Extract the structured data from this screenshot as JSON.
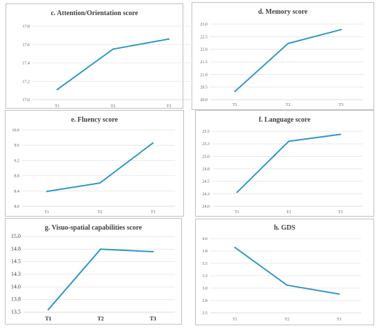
{
  "colors": {
    "line": "#2e95c8"
  },
  "chart_data": [
    {
      "type": "line",
      "title": "c. Attention/Orientation score",
      "categories": [
        "T1",
        "T2",
        "T3"
      ],
      "values": [
        17.11,
        17.55,
        17.66
      ],
      "ylim": [
        17.0,
        17.8
      ],
      "yticks": [
        "17.0",
        "17.2",
        "17.4",
        "17.6",
        "17.8"
      ],
      "grid": true
    },
    {
      "type": "line",
      "title": "d. Memory score",
      "categories": [
        "T1",
        "T2",
        "T3"
      ],
      "values": [
        20.33,
        22.23,
        22.78
      ],
      "ylim": [
        20.0,
        23.0
      ],
      "yticks": [
        "20.0",
        "20.5",
        "21.0",
        "21.5",
        "22.0",
        "22.5",
        "23.0"
      ],
      "grid": true
    },
    {
      "type": "line",
      "title": "e. Fluency score",
      "categories": [
        "T1",
        "T2",
        "T3"
      ],
      "values": [
        8.39,
        8.61,
        9.66
      ],
      "ylim": [
        8.0,
        10.0
      ],
      "yticks": [
        "8.0",
        "8.4",
        "8.8",
        "9.2",
        "9.6",
        "10.0"
      ],
      "grid": true
    },
    {
      "type": "line",
      "title": "f. Language score",
      "categories": [
        "T1",
        "T2",
        "T3"
      ],
      "values": [
        24.28,
        25.3,
        25.44
      ],
      "ylim": [
        24.0,
        25.5
      ],
      "yticks": [
        "24.0",
        "24.3",
        "24.5",
        "24.8",
        "25.0",
        "25.3",
        "25.5"
      ],
      "grid": true
    },
    {
      "type": "line",
      "title": "g. Visuo-spatial capabilities score",
      "categories": [
        "T1",
        "T2",
        "T3"
      ],
      "values": [
        13.55,
        14.75,
        14.7
      ],
      "ylim": [
        13.5,
        15.0
      ],
      "yticks": [
        "13.5",
        "13.8",
        "14.0",
        "14.3",
        "14.5",
        "14.8",
        "15.0"
      ],
      "grid": true
    },
    {
      "type": "line",
      "title": "h. GDS",
      "categories": [
        "T1",
        "T2",
        "T3"
      ],
      "values": [
        3.82,
        3.06,
        2.88
      ],
      "ylim": [
        2.5,
        4.0
      ],
      "yticks": [
        "2.5",
        "2.8",
        "3.0",
        "3.3",
        "3.5",
        "3.8",
        "4.0"
      ],
      "grid": true
    }
  ]
}
